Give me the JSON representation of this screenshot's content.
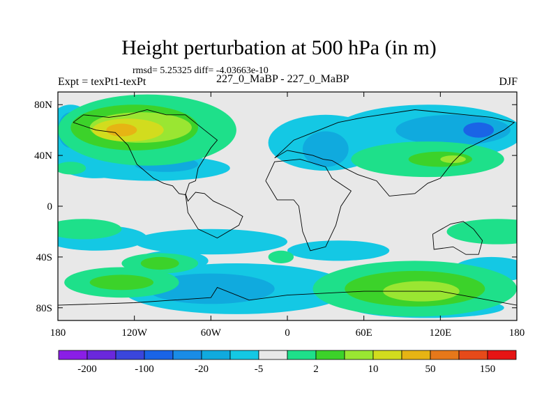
{
  "chart_data": {
    "type": "contour-map",
    "title": "Height perturbation at 500 hPa (in m)",
    "stats_line": "rmsd= 5.25325 diff= -4.03663e-10",
    "experiment_label": "Expt = texPt1-texPt",
    "comparison_label": "227_0_MaBP - 227_0_MaBP",
    "season": "DJF",
    "xlim": [
      -180,
      180
    ],
    "ylim": [
      -90,
      90
    ],
    "x_ticks": [
      {
        "value": -180,
        "label": "180"
      },
      {
        "value": -120,
        "label": "120W"
      },
      {
        "value": -60,
        "label": "60W"
      },
      {
        "value": 0,
        "label": "0"
      },
      {
        "value": 60,
        "label": "60E"
      },
      {
        "value": 120,
        "label": "120E"
      },
      {
        "value": 180,
        "label": "180"
      }
    ],
    "y_ticks": [
      {
        "value": 80,
        "label": "80N"
      },
      {
        "value": 40,
        "label": "40N"
      },
      {
        "value": 0,
        "label": "0"
      },
      {
        "value": -40,
        "label": "40S"
      },
      {
        "value": -80,
        "label": "80S"
      }
    ],
    "colorbar": {
      "colors": [
        "#8a1ee6",
        "#6a28dc",
        "#3a46dc",
        "#1a64e6",
        "#1a8ce6",
        "#10aade",
        "#14c8e4",
        "#e8e8e8",
        "#1ee08a",
        "#3cd22a",
        "#9ae632",
        "#d2dc1e",
        "#e6b414",
        "#e6781a",
        "#e64a1a",
        "#e61414"
      ],
      "tick_labels": [
        "-200",
        "-100",
        "-20",
        "-5",
        "2",
        "10",
        "50",
        "150"
      ],
      "extra_labels": [
        "",
        "",
        "",
        "",
        "",
        "",
        ""
      ]
    },
    "contours": [
      {
        "level": "-5..-2",
        "color": "#14c8e4",
        "regions": [
          {
            "lon": -150,
            "lat": 50,
            "rlon": 45,
            "rlat": 28
          },
          {
            "lon": -105,
            "lat": 30,
            "rlon": 60,
            "rlat": 10
          },
          {
            "lon": 30,
            "lat": 50,
            "rlon": 45,
            "rlat": 22
          },
          {
            "lon": 110,
            "lat": 58,
            "rlon": 75,
            "rlat": 22
          },
          {
            "lon": -170,
            "lat": 62,
            "rlon": 18,
            "rlat": 18
          },
          {
            "lon": -150,
            "lat": -25,
            "rlon": 40,
            "rlat": 10
          },
          {
            "lon": -60,
            "lat": -28,
            "rlon": 60,
            "rlat": 10
          },
          {
            "lon": 40,
            "lat": -35,
            "rlon": 40,
            "rlat": 8
          },
          {
            "lon": -90,
            "lat": -43,
            "rlon": 28,
            "rlat": 8
          },
          {
            "lon": -40,
            "lat": -65,
            "rlon": 90,
            "rlat": 20
          },
          {
            "lon": 110,
            "lat": -80,
            "rlon": 60,
            "rlat": 8
          },
          {
            "lon": 160,
            "lat": -50,
            "rlon": 30,
            "rlat": 10
          }
        ]
      },
      {
        "level": "-20..-5",
        "color": "#10aade",
        "regions": [
          {
            "lon": 130,
            "lat": 60,
            "rlon": 45,
            "rlat": 12
          },
          {
            "lon": 30,
            "lat": 45,
            "rlon": 18,
            "rlat": 14
          },
          {
            "lon": -60,
            "lat": -65,
            "rlon": 50,
            "rlat": 12
          },
          {
            "lon": -170,
            "lat": 60,
            "rlon": 10,
            "rlat": 14
          },
          {
            "lon": -95,
            "lat": 33,
            "rlon": 25,
            "rlat": 6
          }
        ]
      },
      {
        "level": "-100..-20",
        "color": "#1a64e6",
        "regions": [
          {
            "lon": 150,
            "lat": 60,
            "rlon": 12,
            "rlat": 6
          },
          {
            "lon": -95,
            "lat": 36,
            "rlon": 5,
            "rlat": 3
          }
        ]
      },
      {
        "level": "2..10",
        "color": "#1ee08a",
        "regions": [
          {
            "lon": -110,
            "lat": 60,
            "rlon": 70,
            "rlat": 28
          },
          {
            "lon": 110,
            "lat": 37,
            "rlon": 60,
            "rlat": 14
          },
          {
            "lon": -160,
            "lat": -18,
            "rlon": 30,
            "rlat": 8
          },
          {
            "lon": -100,
            "lat": -45,
            "rlon": 30,
            "rlat": 8
          },
          {
            "lon": 100,
            "lat": -65,
            "rlon": 80,
            "rlat": 22
          },
          {
            "lon": -130,
            "lat": -60,
            "rlon": 45,
            "rlat": 12
          },
          {
            "lon": 165,
            "lat": -20,
            "rlon": 40,
            "rlat": 10
          },
          {
            "lon": -170,
            "lat": 30,
            "rlon": 12,
            "rlat": 5
          },
          {
            "lon": -5,
            "lat": -40,
            "rlon": 10,
            "rlat": 5
          }
        ]
      },
      {
        "level": "10..50",
        "color": "#3cd22a",
        "regions": [
          {
            "lon": -120,
            "lat": 62,
            "rlon": 50,
            "rlat": 18
          },
          {
            "lon": -100,
            "lat": -45,
            "rlon": 15,
            "rlat": 5
          },
          {
            "lon": -130,
            "lat": -60,
            "rlon": 25,
            "rlat": 6
          },
          {
            "lon": 100,
            "lat": -65,
            "rlon": 55,
            "rlat": 14
          },
          {
            "lon": 120,
            "lat": 37,
            "rlon": 25,
            "rlat": 6
          }
        ]
      },
      {
        "level": "50..100",
        "color": "#9ae632",
        "regions": [
          {
            "lon": -115,
            "lat": 62,
            "rlon": 40,
            "rlat": 12
          },
          {
            "lon": 105,
            "lat": -67,
            "rlon": 30,
            "rlat": 8
          },
          {
            "lon": 130,
            "lat": 37,
            "rlon": 10,
            "rlat": 3
          }
        ]
      },
      {
        "level": "100..150",
        "color": "#d2dc1e",
        "regions": [
          {
            "lon": -125,
            "lat": 60,
            "rlon": 28,
            "rlat": 9
          }
        ]
      },
      {
        "level": "150..200",
        "color": "#e6b414",
        "regions": [
          {
            "lon": -130,
            "lat": 60,
            "rlon": 12,
            "rlat": 5
          }
        ]
      }
    ],
    "coastlines": [
      {
        "name": "north-america",
        "lon": [
          -168,
          -150,
          -135,
          -125,
          -118,
          -105,
          -97,
          -90,
          -85,
          -80,
          -77,
          -72,
          -70,
          -60,
          -55,
          -65,
          -80,
          -95,
          -110,
          -125,
          -140,
          -160,
          -168
        ],
        "lat": [
          66,
          60,
          58,
          48,
          33,
          22,
          18,
          16,
          10,
          9,
          18,
          20,
          30,
          46,
          52,
          60,
          72,
          72,
          76,
          72,
          70,
          72,
          66
        ]
      },
      {
        "name": "south-america",
        "lon": [
          -80,
          -78,
          -70,
          -55,
          -38,
          -35,
          -45,
          -58,
          -65,
          -72,
          -78,
          -80
        ],
        "lat": [
          10,
          -5,
          -18,
          -25,
          -15,
          -8,
          -2,
          4,
          10,
          11,
          4,
          10
        ]
      },
      {
        "name": "eurasia",
        "lon": [
          -10,
          5,
          20,
          40,
          60,
          100,
          140,
          160,
          178,
          170,
          140,
          130,
          120,
          110,
          100,
          80,
          70,
          55,
          45,
          35,
          28,
          20,
          10,
          0,
          -10
        ],
        "lat": [
          38,
          52,
          58,
          66,
          70,
          76,
          72,
          70,
          66,
          60,
          45,
          35,
          22,
          18,
          10,
          8,
          20,
          25,
          30,
          36,
          37,
          40,
          42,
          44,
          38
        ]
      },
      {
        "name": "africa",
        "lon": [
          -17,
          -10,
          10,
          30,
          35,
          50,
          42,
          38,
          30,
          18,
          12,
          9,
          5,
          -8,
          -17
        ],
        "lat": [
          20,
          35,
          37,
          31,
          22,
          12,
          0,
          -15,
          -32,
          -35,
          -20,
          0,
          5,
          5,
          20
        ]
      },
      {
        "name": "australia",
        "lon": [
          114,
          128,
          138,
          146,
          153,
          150,
          140,
          130,
          115,
          114
        ],
        "lat": [
          -22,
          -14,
          -12,
          -18,
          -27,
          -38,
          -38,
          -32,
          -34,
          -22
        ]
      },
      {
        "name": "antarctica",
        "lon": [
          -180,
          -120,
          -60,
          -55,
          -30,
          0,
          60,
          120,
          180
        ],
        "lat": [
          -78,
          -76,
          -72,
          -64,
          -74,
          -70,
          -67,
          -67,
          -78
        ]
      }
    ]
  }
}
